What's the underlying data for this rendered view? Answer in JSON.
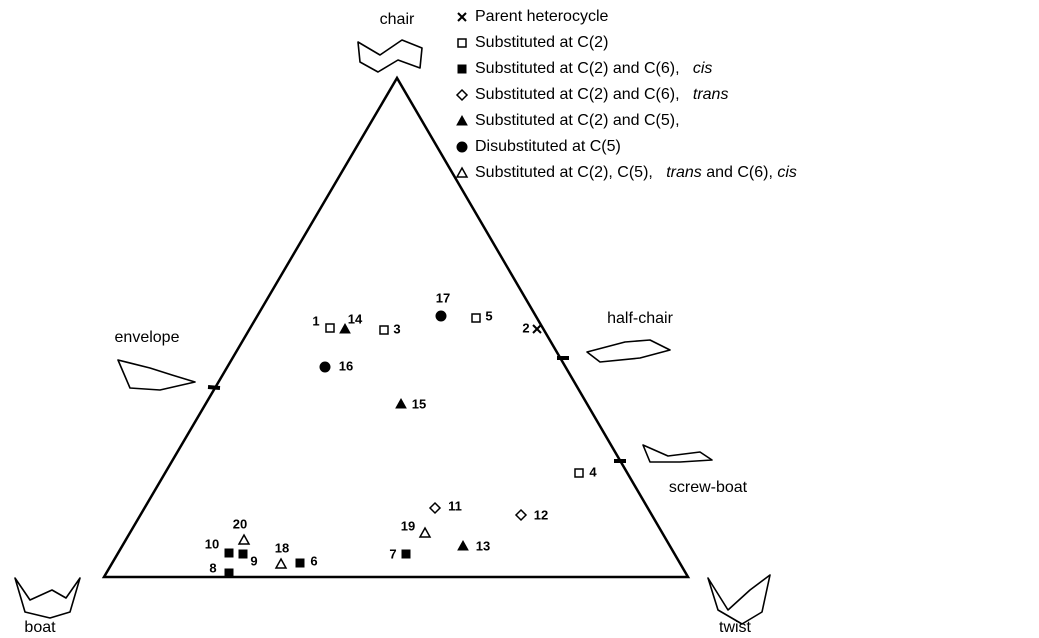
{
  "vertices": {
    "top": "chair",
    "left": "boat",
    "right": "twist"
  },
  "edge_labels": {
    "left": "envelope",
    "right_upper": "half-chair",
    "right_lower": "screw-boat"
  },
  "legend": [
    {
      "marker": "x",
      "parts": [
        "Parent heterocycle"
      ]
    },
    {
      "marker": "open-square",
      "parts": [
        "Substituted at C(2)"
      ]
    },
    {
      "marker": "filled-square",
      "parts": [
        "Substituted at C(2) and C(6),   ",
        "cis"
      ]
    },
    {
      "marker": "open-diamond",
      "parts": [
        "Substituted at C(2) and C(6),   ",
        "trans"
      ]
    },
    {
      "marker": "filled-triangle",
      "parts": [
        "Substituted at C(2) and C(5),"
      ]
    },
    {
      "marker": "filled-circle",
      "parts": [
        "Disubstituted at C(5)"
      ]
    },
    {
      "marker": "open-triangle",
      "parts": [
        "Substituted at C(2), C(5),   ",
        "trans",
        " and C(6), ",
        "cis"
      ]
    }
  ],
  "points": [
    {
      "label": "1",
      "marker": "open-square"
    },
    {
      "label": "14",
      "marker": "filled-triangle"
    },
    {
      "label": "3",
      "marker": "open-square"
    },
    {
      "label": "17",
      "marker": "filled-circle"
    },
    {
      "label": "5",
      "marker": "open-square"
    },
    {
      "label": "2",
      "marker": "x"
    },
    {
      "label": "16",
      "marker": "filled-circle"
    },
    {
      "label": "15",
      "marker": "filled-triangle"
    },
    {
      "label": "4",
      "marker": "open-square"
    },
    {
      "label": "11",
      "marker": "open-diamond"
    },
    {
      "label": "12",
      "marker": "open-diamond"
    },
    {
      "label": "19",
      "marker": "open-triangle"
    },
    {
      "label": "13",
      "marker": "filled-triangle"
    },
    {
      "label": "7",
      "marker": "filled-square"
    },
    {
      "label": "20",
      "marker": "open-triangle"
    },
    {
      "label": "10",
      "marker": "filled-square"
    },
    {
      "label": "9",
      "marker": "filled-square"
    },
    {
      "label": "8",
      "marker": "filled-square"
    },
    {
      "label": "18",
      "marker": "open-triangle"
    },
    {
      "label": "6",
      "marker": "filled-square"
    }
  ]
}
